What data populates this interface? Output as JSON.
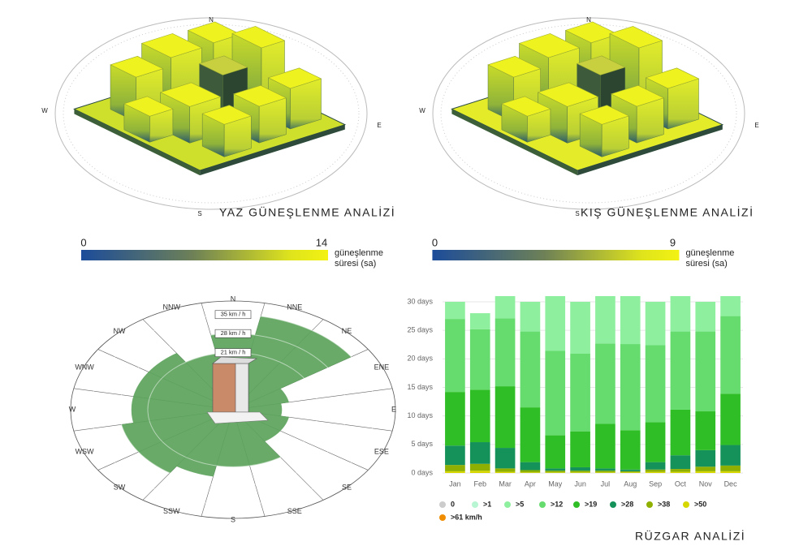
{
  "panels": [
    {
      "title": "YAZ GÜNEŞLENME ANALİZİ",
      "compass": [
        "N",
        "E",
        "S",
        "W"
      ],
      "colorbar": {
        "min": 0,
        "max": 14,
        "label": [
          "güneşlenme",
          "süresi (sa)"
        ]
      }
    },
    {
      "title": "KIŞ GÜNEŞLENME ANALİZİ",
      "compass": [
        "N",
        "E",
        "S",
        "W"
      ],
      "colorbar": {
        "min": 0,
        "max": 9,
        "label": [
          "güneşlenme",
          "süresi (sa)"
        ]
      }
    }
  ],
  "chart_data": [
    {
      "type": "wind-rose",
      "categories": [
        "N",
        "NNE",
        "NE",
        "ENE",
        "E",
        "ESE",
        "SE",
        "SSE",
        "S",
        "SSW",
        "SW",
        "WSW",
        "W",
        "WNW",
        "NW",
        "NNW"
      ],
      "values": [
        28,
        35,
        35,
        14,
        12,
        14,
        14,
        21,
        21,
        25,
        28,
        28,
        25,
        25,
        25,
        21
      ],
      "color": "#5da35d",
      "rlim": [
        0,
        40
      ],
      "rticks": [
        {
          "value": 21,
          "label": "21 km / h"
        },
        {
          "value": 28,
          "label": "28 km / h"
        },
        {
          "value": 35,
          "label": "35 km / h"
        }
      ]
    },
    {
      "type": "stacked-bar",
      "title": "RÜZGAR ANALİZİ",
      "categories": [
        "Jan",
        "Feb",
        "Mar",
        "Apr",
        "May",
        "Jun",
        "Jul",
        "Aug",
        "Sep",
        "Oct",
        "Nov",
        "Dec"
      ],
      "series": [
        {
          "name": "0",
          "color": "#cccccc",
          "values": [
            0,
            0,
            0,
            0,
            0,
            0,
            0,
            0,
            0,
            0,
            0,
            0
          ]
        },
        {
          "name": ">1",
          "color": "#b8f5d2",
          "values": [
            0,
            0,
            0,
            0,
            0,
            0,
            0,
            0,
            0,
            0,
            0,
            0
          ]
        },
        {
          "name": ">5",
          "color": "#8eef9f",
          "values": [
            3,
            2.8,
            3.9,
            5.2,
            9.6,
            9.1,
            8.3,
            8.4,
            7.6,
            6.2,
            5.2,
            3.5
          ]
        },
        {
          "name": ">12",
          "color": "#66dc6f",
          "values": [
            12.8,
            10.6,
            11.9,
            13.3,
            14.8,
            13.6,
            14.1,
            15.1,
            13.5,
            13.7,
            14,
            13.6
          ]
        },
        {
          "name": ">19",
          "color": "#2fbe25",
          "values": [
            9.4,
            9.2,
            10.8,
            9.6,
            5.8,
            6.3,
            7.8,
            6.9,
            7,
            8,
            6.8,
            9
          ]
        },
        {
          "name": ">28",
          "color": "#15915a",
          "values": [
            3.4,
            3.8,
            3.6,
            1.4,
            0.4,
            0.6,
            0.4,
            0.3,
            1.3,
            2.4,
            2.9,
            3.6
          ]
        },
        {
          "name": ">38",
          "color": "#8fb000",
          "values": [
            1.1,
            1.2,
            0.6,
            0.4,
            0.3,
            0.3,
            0.3,
            0.2,
            0.4,
            0.5,
            0.8,
            1
          ]
        },
        {
          "name": ">50",
          "color": "#d7d700",
          "values": [
            0.3,
            0.4,
            0.2,
            0.1,
            0.1,
            0.1,
            0.1,
            0.1,
            0.2,
            0.2,
            0.3,
            0.3
          ]
        },
        {
          "name": ">61 km/h",
          "color": "#f08c00",
          "values": [
            0,
            0,
            0,
            0,
            0,
            0,
            0,
            0,
            0,
            0,
            0,
            0
          ]
        }
      ],
      "ylim": [
        0,
        30
      ],
      "yticks": [
        {
          "value": 0,
          "label": "0 days"
        },
        {
          "value": 5,
          "label": "5 days"
        },
        {
          "value": 10,
          "label": "10 days"
        },
        {
          "value": 15,
          "label": "15 days"
        },
        {
          "value": 20,
          "label": "20 days"
        },
        {
          "value": 25,
          "label": "25 days"
        },
        {
          "value": 30,
          "label": "30 days"
        }
      ],
      "grid": true
    }
  ]
}
